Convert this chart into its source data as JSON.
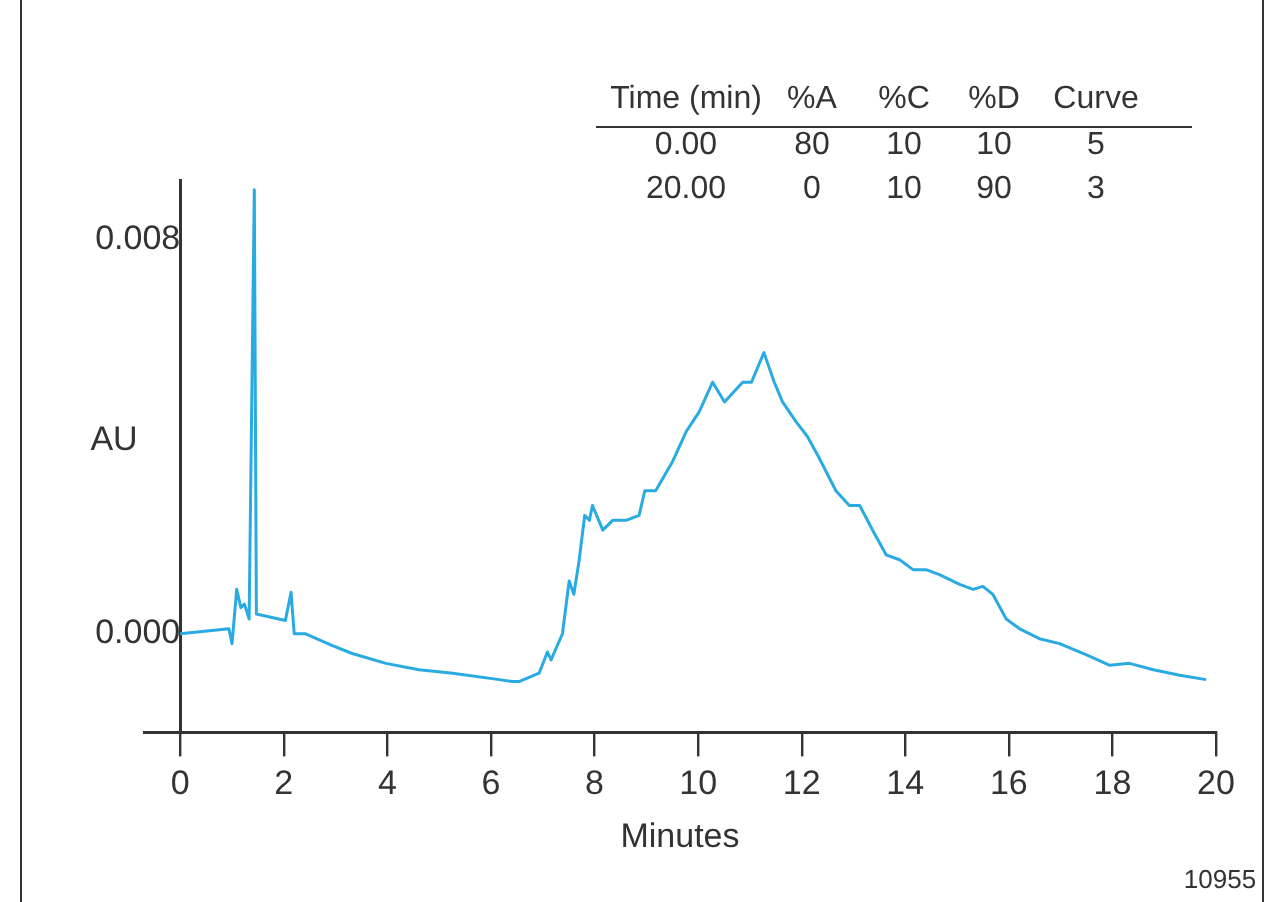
{
  "chart_data": {
    "type": "line",
    "xlabel": "Minutes",
    "ylabel": "AU",
    "annotations": [
      "Time (min)",
      "%A",
      "%C",
      "%D",
      "Curve",
      "0.00",
      "80",
      "10",
      "10",
      "5",
      "20.00",
      "0",
      "10",
      "90",
      "3",
      "10955"
    ],
    "xlim": [
      -0.7,
      20
    ],
    "xticks": [
      0,
      2,
      4,
      6,
      8,
      10,
      12,
      14,
      16,
      18,
      20
    ],
    "ylim": [
      -0.002,
      0.0092
    ],
    "yticks": [
      {
        "value": 0,
        "label": "0.000"
      },
      {
        "value": 0.008,
        "label": "0.008"
      }
    ],
    "grid": false,
    "legend": false,
    "marker": "none",
    "line_style": "solid",
    "series": [
      {
        "color": "#29abe2",
        "x": [
          0,
          0.94,
          1.0,
          1.09,
          1.17,
          1.24,
          1.33,
          1.43,
          1.47,
          2.03,
          2.14,
          2.2,
          2.42,
          2.94,
          3.32,
          3.97,
          4.61,
          5.26,
          6.16,
          6.42,
          6.54,
          6.93,
          7.09,
          7.16,
          7.38,
          7.51,
          7.6,
          7.7,
          7.81,
          7.9,
          7.96,
          8.16,
          8.35,
          8.61,
          8.86,
          8.97,
          9.18,
          9.51,
          9.77,
          10.02,
          10.28,
          10.51,
          10.86,
          11.03,
          11.27,
          11.47,
          11.63,
          11.89,
          12.11,
          12.32,
          12.66,
          12.92,
          13.12,
          13.37,
          13.63,
          13.89,
          14.15,
          14.4,
          14.66,
          15.05,
          15.31,
          15.5,
          15.69,
          15.95,
          16.21,
          16.59,
          16.98,
          17.5,
          17.95,
          18.33,
          18.79,
          19.3,
          19.81
        ],
        "values": [
          0,
          0.0001,
          -0.0002,
          0.0009,
          0.00053,
          0.0006,
          0.0003,
          0.009,
          0.0004,
          0.00027,
          0.00084,
          0,
          0,
          -0.00024,
          -0.0004,
          -0.0006,
          -0.00073,
          -0.0008,
          -0.00093,
          -0.00097,
          -0.00097,
          -0.0008,
          -0.00037,
          -0.00053,
          0,
          0.00107,
          0.0008,
          0.00147,
          0.0024,
          0.0023,
          0.0026,
          0.0021,
          0.0023,
          0.0023,
          0.0024,
          0.0029,
          0.0029,
          0.0035,
          0.0041,
          0.0045,
          0.0051,
          0.0047,
          0.0051,
          0.0051,
          0.0057,
          0.0051,
          0.0047,
          0.0043,
          0.004,
          0.0036,
          0.0029,
          0.0026,
          0.0026,
          0.0021,
          0.0016,
          0.0015,
          0.0013,
          0.0013,
          0.0012,
          0.001,
          0.0009,
          0.00096,
          0.0008,
          0.0003,
          0.0001,
          -0.0001,
          -0.0002,
          -0.00043,
          -0.00064,
          -0.0006,
          -0.00073,
          -0.00084,
          -0.00093
        ]
      }
    ]
  }
}
